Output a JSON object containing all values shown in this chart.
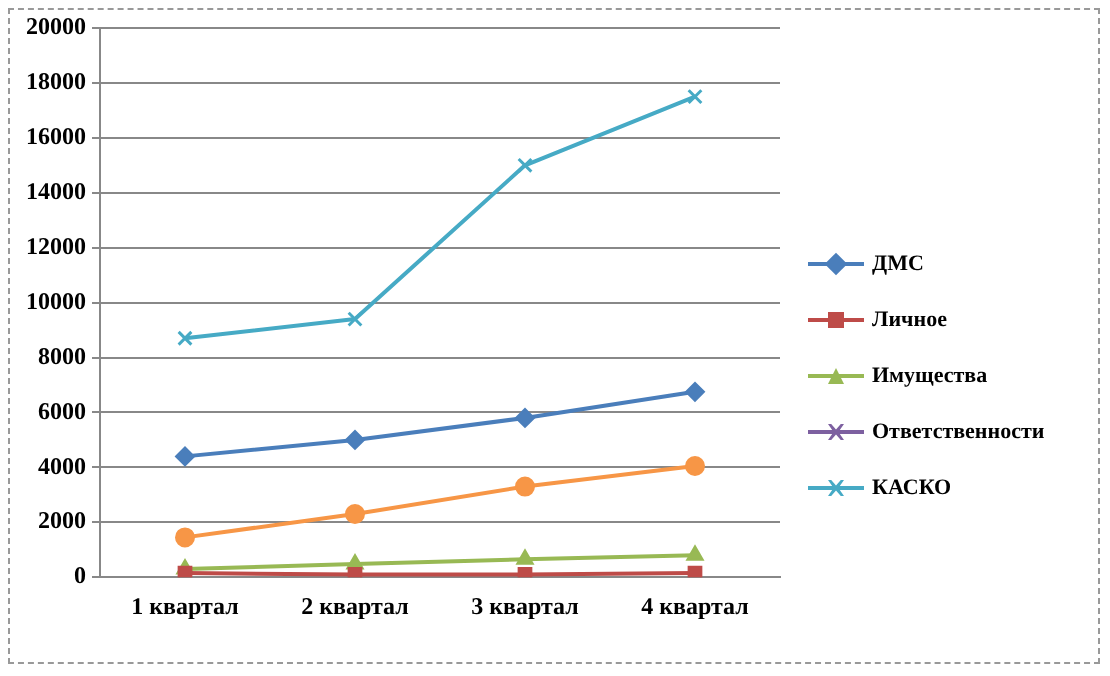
{
  "chart_data": {
    "type": "line",
    "categories": [
      "1 квартал",
      "2 квартал",
      "3 квартал",
      "4 квартал"
    ],
    "series": [
      {
        "name": "ДМС",
        "color": "#4a7ebb",
        "marker": "diamond",
        "values": [
          4400,
          5000,
          5800,
          6750
        ]
      },
      {
        "name": "Личное",
        "color": "#be4b48",
        "marker": "square",
        "values": [
          150,
          100,
          100,
          150
        ]
      },
      {
        "name": "Имущества",
        "color": "#98b954",
        "marker": "triangle",
        "values": [
          300,
          480,
          650,
          800
        ]
      },
      {
        "name": "Ответственности",
        "color": "#7d60a0",
        "marker": "cross",
        "values": [
          null,
          null,
          null,
          null
        ]
      },
      {
        "name": "КАСКО",
        "color": "#46aac5",
        "marker": "cross",
        "values": [
          8700,
          9400,
          15000,
          17500
        ]
      },
      {
        "color": "#f79646",
        "marker": "circle",
        "values": [
          1450,
          2300,
          3300,
          4050
        ]
      }
    ],
    "ylim": [
      0,
      20000
    ],
    "yticks": [
      0,
      2000,
      4000,
      6000,
      8000,
      10000,
      12000,
      14000,
      16000,
      18000,
      20000
    ],
    "grid": "y",
    "legend": "right"
  }
}
